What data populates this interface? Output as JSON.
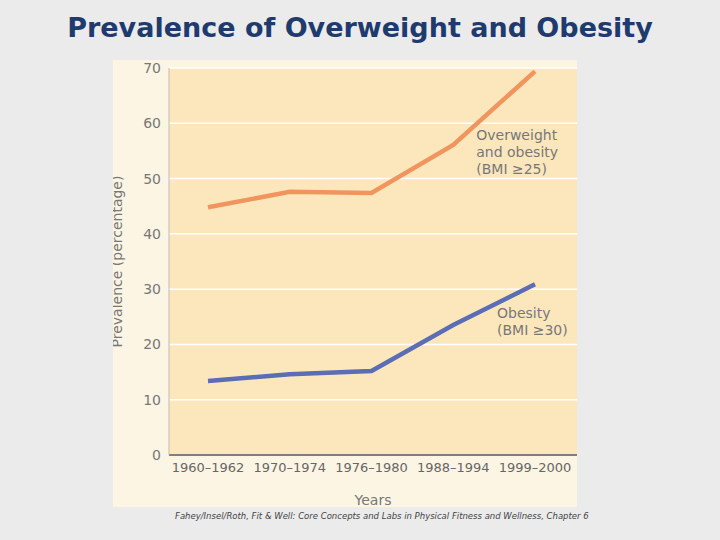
{
  "chart_data": {
    "type": "line",
    "title": "Prevalence of Overweight and Obesity",
    "x_label": "Years",
    "y_label": "Prevalence (percentage)",
    "source": "Fahey/Insel/Roth, Fit & Well: Core Concepts and Labs in Physical Fitness and Wellness, Chapter 6",
    "categories": [
      "1960–1962",
      "1970–1974",
      "1976–1980",
      "1988–1994",
      "1999–2000"
    ],
    "series": [
      {
        "name": "Overweight and obesity (BMI ≥25)",
        "color": "#f0955e",
        "values": [
          44.8,
          47.6,
          47.4,
          56.1,
          69.4
        ]
      },
      {
        "name": "Obesity (BMI ≥30)",
        "color": "#5a6db5",
        "values": [
          13.4,
          14.6,
          15.2,
          23.5,
          30.9
        ]
      }
    ],
    "ylim": [
      0,
      70
    ],
    "yticks": [
      0,
      10,
      20,
      30,
      40,
      50,
      60,
      70
    ],
    "grid": true
  }
}
